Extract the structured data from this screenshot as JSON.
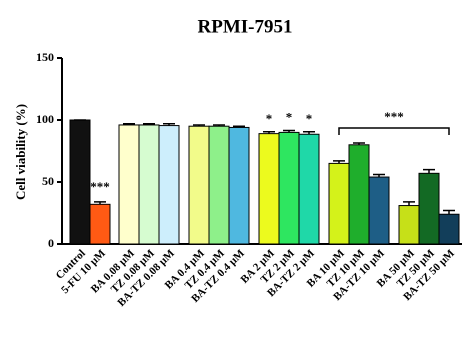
{
  "chart_data": {
    "type": "bar",
    "title": "RPMI-7951",
    "y_label": "Cell viability (%)",
    "categories": [
      "Control",
      "5-FU 10 μM",
      "BA 0.08 μM",
      "TZ 0.08 μM",
      "BA-TZ 0.08 μM",
      "BA 0.4 μM",
      "TZ 0.4 μM",
      "BA-TZ 0.4 μM",
      "BA 2 μM",
      "TZ 2 μM",
      "BA-TZ 2 μM",
      "BA 10 μM",
      "TZ 10 μM",
      "BA-TZ 10 μM",
      "BA 50 μM",
      "TZ 50 μM",
      "BA-TZ 50 μM"
    ],
    "values": [
      100,
      32,
      96,
      96,
      95.5,
      95,
      95,
      94,
      89,
      90,
      88.5,
      65,
      80,
      54,
      31,
      57,
      24
    ],
    "errors": [
      0,
      2,
      1,
      1,
      1.5,
      1,
      1,
      1,
      1.5,
      1.5,
      2,
      2,
      1.5,
      2,
      3,
      3,
      3
    ],
    "colors": [
      "#111111",
      "#ff5a14",
      "#ffffcc",
      "#d6fcd0",
      "#cdeefc",
      "#f2fb8a",
      "#8ef08a",
      "#4fb8e0",
      "#ecfa1e",
      "#2ee660",
      "#1fd8a8",
      "#d4f21a",
      "#1fae2c",
      "#1e5e86",
      "#c6e018",
      "#136a24",
      "#123e5a"
    ],
    "annotations": [
      "***",
      "*",
      "*",
      "*",
      "***"
    ],
    "ylim": [
      0,
      150
    ],
    "yticks": [
      0,
      50,
      100,
      150
    ]
  }
}
